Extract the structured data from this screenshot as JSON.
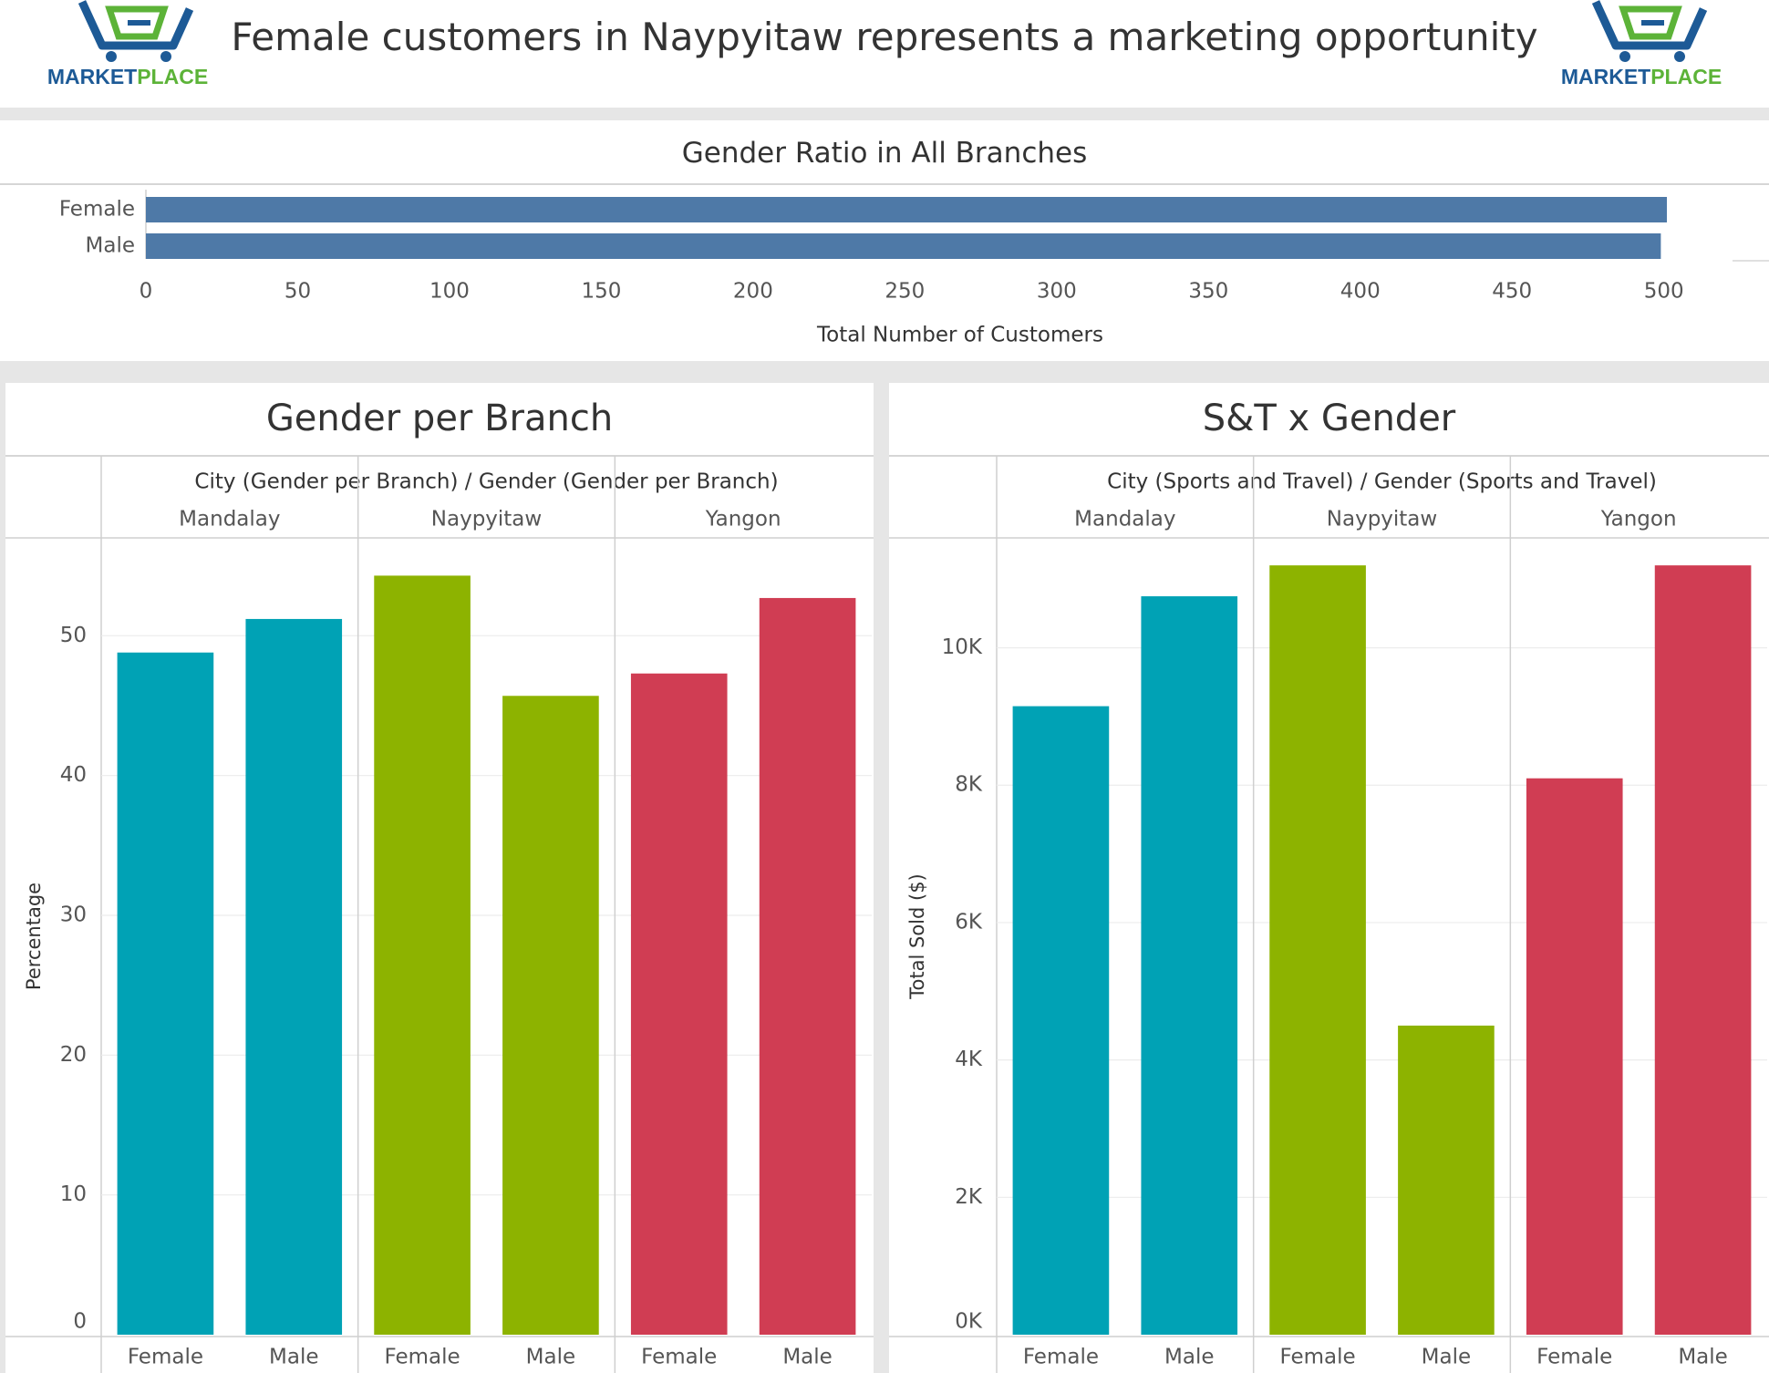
{
  "header": {
    "title": "Female customers in Naypyitaw represents a marketing opportunity",
    "logo_word_left": "MARKET",
    "logo_word_right": "PLACE"
  },
  "colors": {
    "mandalay": "#00a2b5",
    "naypyitaw": "#8db300",
    "yangon": "#d03d53",
    "ratio_bar": "#4e79a7",
    "logo_blue": "#1d5a96",
    "logo_green": "#5cb338"
  },
  "ratio": {
    "title": "Gender Ratio in All Branches",
    "xlabel": "Total Number of Customers"
  },
  "gender_panel": {
    "title": "Gender per Branch",
    "header": "City (Gender per Branch)  /  Gender (Gender per Branch)",
    "ylabel": "Percentage"
  },
  "st_panel": {
    "title": "S&T x Gender",
    "header": "City (Sports and Travel)  /  Gender (Sports and Travel)",
    "ylabel": "Total Sold ($)"
  },
  "chart_data": [
    {
      "type": "bar",
      "orientation": "horizontal",
      "title": "Gender Ratio in All Branches",
      "xlabel": "Total Number of Customers",
      "categories": [
        "Female",
        "Male"
      ],
      "values": [
        501,
        499
      ],
      "xlim": [
        0,
        510
      ],
      "xticks": [
        0,
        50,
        100,
        150,
        200,
        250,
        300,
        350,
        400,
        450,
        500
      ],
      "grid": false
    },
    {
      "type": "bar",
      "title": "Gender per Branch",
      "ylabel": "Percentage",
      "ylim": [
        0,
        57
      ],
      "yticks": [
        0,
        10,
        20,
        30,
        40,
        50
      ],
      "groups": [
        "Mandalay",
        "Naypyitaw",
        "Yangon"
      ],
      "categories": [
        "Female",
        "Male"
      ],
      "values": [
        [
          48.8,
          51.2
        ],
        [
          54.3,
          45.7
        ],
        [
          47.3,
          52.7
        ]
      ],
      "grid": true
    },
    {
      "type": "bar",
      "title": "S&T x Gender",
      "ylabel": "Total Sold ($)",
      "ylim": [
        0,
        11600
      ],
      "yticks": [
        0,
        2000,
        4000,
        6000,
        8000,
        10000
      ],
      "ytick_labels": [
        "0K",
        "2K",
        "4K",
        "6K",
        "8K",
        "10K"
      ],
      "groups": [
        "Mandalay",
        "Naypyitaw",
        "Yangon"
      ],
      "categories": [
        "Female",
        "Male"
      ],
      "values": [
        [
          9150,
          10750
        ],
        [
          11200,
          4500
        ],
        [
          8100,
          11200
        ]
      ],
      "grid": true
    }
  ]
}
